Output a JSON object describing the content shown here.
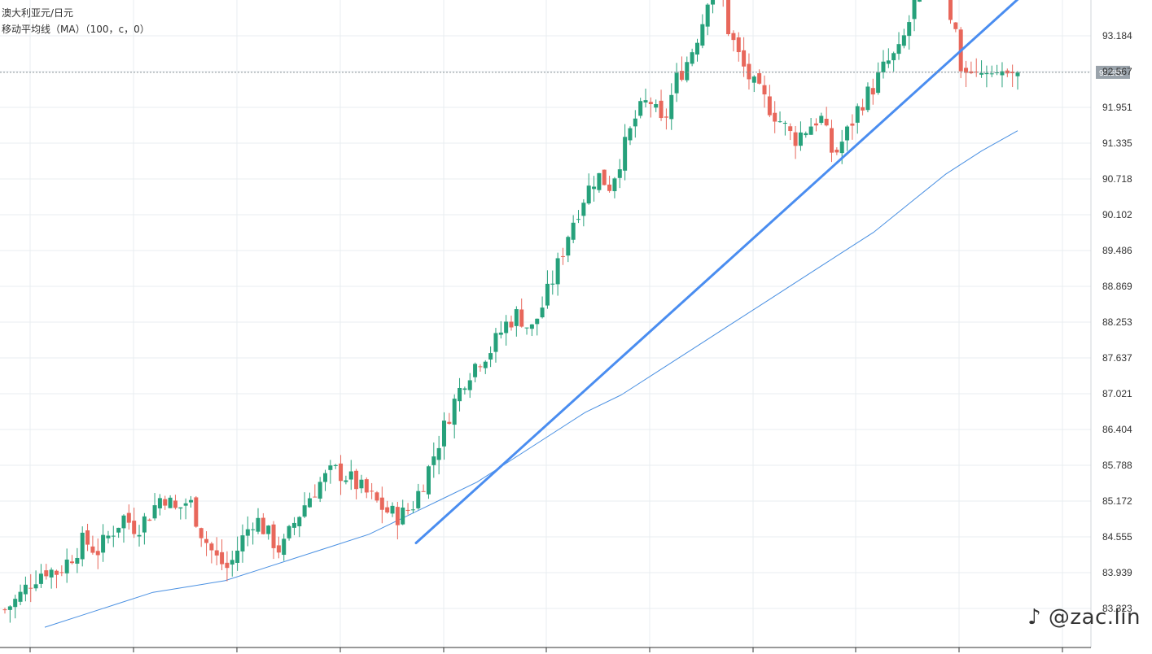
{
  "legend": {
    "symbol": "澳大利亚元/日元",
    "indicator": "移动平均线（MA）（100，c，0）"
  },
  "watermark": "@zac.lin",
  "current_price_label": "92.555",
  "colors": {
    "up": "#26a17b",
    "down": "#e8675b",
    "ma": "#4a90e2",
    "trendline": "#4a8df0",
    "grid": "#e8eef0",
    "price_line": "#8a9399",
    "price_label_bg": "#9aa3ab"
  },
  "chart_data": {
    "type": "candlestick",
    "y_ticks": [
      "93.184",
      "92.567",
      "91.951",
      "91.335",
      "90.718",
      "90.102",
      "89.486",
      "88.869",
      "88.253",
      "87.637",
      "87.021",
      "86.404",
      "85.788",
      "85.172",
      "84.555",
      "83.939",
      "83.323"
    ],
    "ylim": [
      83.0,
      93.9
    ],
    "grid": true,
    "current_price": 92.555,
    "close_path": [
      83.3,
      83.5,
      83.8,
      84.0,
      83.95,
      84.2,
      84.5,
      84.3,
      84.6,
      84.9,
      84.7,
      84.95,
      85.3,
      85.0,
      85.2,
      84.6,
      84.2,
      84.0,
      84.5,
      84.9,
      84.6,
      84.3,
      84.8,
      85.2,
      85.5,
      85.7,
      85.6,
      85.4,
      85.2,
      85.0,
      84.9,
      85.1,
      85.6,
      86.2,
      86.8,
      87.3,
      87.6,
      87.8,
      88.2,
      88.4,
      88.1,
      88.6,
      89.2,
      89.9,
      90.4,
      90.8,
      90.6,
      91.2,
      91.8,
      92.1,
      91.6,
      92.4,
      92.8,
      93.4,
      94.5,
      93.3,
      92.7,
      92.3,
      92.0,
      91.7,
      91.4,
      91.6,
      91.8,
      91.1,
      91.5,
      92.0,
      92.3,
      92.7,
      92.9,
      93.6,
      94.5,
      94.8,
      93.4,
      92.9,
      92.6,
      92.7,
      92.6,
      92.555
    ],
    "ma_path": [
      83.0,
      83.2,
      83.4,
      83.6,
      83.7,
      83.8,
      84.0,
      84.2,
      84.4,
      84.6,
      84.9,
      85.2,
      85.5,
      85.9,
      86.3,
      86.7,
      87.0,
      87.4,
      87.8,
      88.2,
      88.6,
      89.0,
      89.4,
      89.8,
      90.3,
      90.8,
      91.2,
      91.55
    ],
    "trendline": {
      "start": [
        84.45
      ],
      "end": [
        93.95
      ]
    }
  }
}
